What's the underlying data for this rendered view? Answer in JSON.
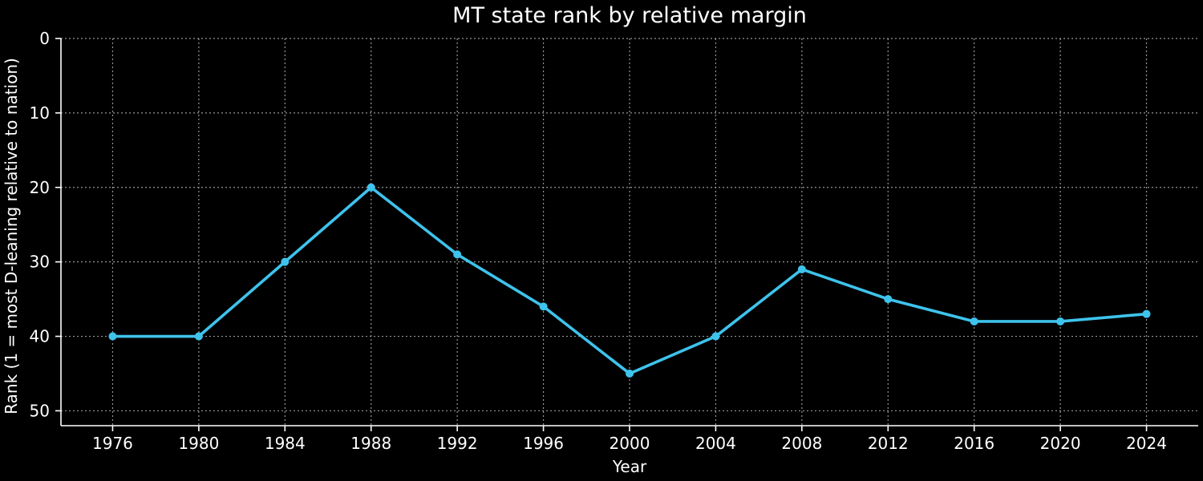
{
  "chart_data": {
    "type": "line",
    "title": "MT state rank by relative margin",
    "xlabel": "Year",
    "ylabel": "Rank (1 = most D-leaning relative to nation)",
    "x": [
      1976,
      1980,
      1984,
      1988,
      1992,
      1996,
      2000,
      2004,
      2008,
      2012,
      2016,
      2020,
      2024
    ],
    "series": [
      {
        "values": [
          40,
          40,
          30,
          20,
          29,
          36,
          45,
          40,
          31,
          35,
          38,
          38,
          37
        ],
        "color": "#3ec3ec"
      }
    ],
    "xlim": [
      1973.6,
      1926.4
    ],
    "xticks": [
      1976,
      1980,
      1984,
      1988,
      1992,
      1996,
      2000,
      2004,
      2008,
      2012,
      2016,
      2020,
      2024
    ],
    "ylim": [
      52,
      0
    ],
    "yticks": [
      0,
      10,
      20,
      30,
      40,
      50
    ],
    "y_inverted": true,
    "grid": true,
    "background": "#000000",
    "text_color": "#ffffff"
  }
}
